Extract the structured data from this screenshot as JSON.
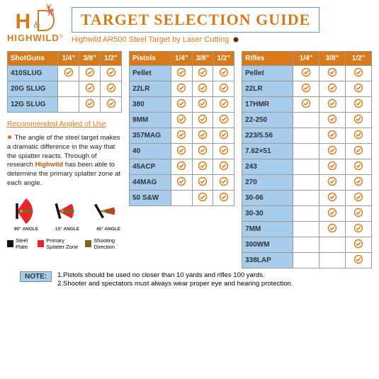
{
  "brand": "HIGHWILD",
  "title": "TARGET SELECTION GUIDE",
  "subtitle": "Highwild AR500 Steel Target by Laser Cutting",
  "colors": {
    "accent": "#d87a1a",
    "header_cell": "#a8ccec",
    "border": "#6699cc",
    "splatter": "#e8252b",
    "plate": "#151515",
    "bullet": "#7a6a20"
  },
  "thickness_labels": [
    "1/4\"",
    "3/8\"",
    "1/2\""
  ],
  "shotguns": {
    "label": "ShotGuns",
    "rows": [
      {
        "name": "410SLUG",
        "v": [
          true,
          true,
          true
        ]
      },
      {
        "name": "20G SLUG",
        "v": [
          false,
          true,
          true
        ]
      },
      {
        "name": "12G SLUG",
        "v": [
          false,
          true,
          true
        ]
      }
    ]
  },
  "pistols": {
    "label": "Pistols",
    "rows": [
      {
        "name": "Pellet",
        "v": [
          true,
          true,
          true
        ]
      },
      {
        "name": "22LR",
        "v": [
          true,
          true,
          true
        ]
      },
      {
        "name": "380",
        "v": [
          true,
          true,
          true
        ]
      },
      {
        "name": "9MM",
        "v": [
          true,
          true,
          true
        ]
      },
      {
        "name": "357MAG",
        "v": [
          true,
          true,
          true
        ]
      },
      {
        "name": "40",
        "v": [
          true,
          true,
          true
        ]
      },
      {
        "name": "45ACP",
        "v": [
          true,
          true,
          true
        ]
      },
      {
        "name": "44MAG",
        "v": [
          true,
          true,
          true
        ]
      },
      {
        "name": "50 S&W",
        "v": [
          false,
          true,
          true
        ]
      }
    ]
  },
  "rifles": {
    "label": "Rifles",
    "rows": [
      {
        "name": "Pellet",
        "v": [
          true,
          true,
          true
        ]
      },
      {
        "name": "22LR",
        "v": [
          true,
          true,
          true
        ]
      },
      {
        "name": "17HMR",
        "v": [
          true,
          true,
          true
        ]
      },
      {
        "name": "22-250",
        "v": [
          false,
          true,
          true
        ]
      },
      {
        "name": "223/5.56",
        "v": [
          false,
          true,
          true
        ]
      },
      {
        "name": "7.62×51",
        "v": [
          false,
          true,
          true
        ]
      },
      {
        "name": "243",
        "v": [
          false,
          true,
          true
        ]
      },
      {
        "name": "270",
        "v": [
          false,
          true,
          true
        ]
      },
      {
        "name": "30-06",
        "v": [
          false,
          true,
          true
        ]
      },
      {
        "name": "30-30",
        "v": [
          false,
          true,
          true
        ]
      },
      {
        "name": "7MM",
        "v": [
          false,
          true,
          true
        ]
      },
      {
        "name": "300WM",
        "v": [
          false,
          false,
          true
        ]
      },
      {
        "name": "338LAP",
        "v": [
          false,
          false,
          true
        ]
      }
    ]
  },
  "recommend": {
    "title": "Recommended Angled of Use",
    "text_pre": "The angle of the steel target makes a dramatic difference in the way that the splatter reacts. Through of research ",
    "brand": "Highwild",
    "text_post": " has been able to determine the primary splatter zone at each angle."
  },
  "angles": [
    {
      "label": "90° ANGLE",
      "plate_rot": 90,
      "cone_half": 55
    },
    {
      "label": "15° ANGLE",
      "plate_rot": 75,
      "cone_half": 28
    },
    {
      "label": "45° ANGLE",
      "plate_rot": 60,
      "cone_half": 14
    }
  ],
  "legend": {
    "plate": "Steel Plate",
    "splatter": "Primary Splatter Zone",
    "direction": "Shooting Direction"
  },
  "note": {
    "label": "NOTE:",
    "line1": "1.Pistols should be used no closer than 10 yards and rifles 100 yards.",
    "line2": "2.Shooter and spectators must always wear proper eye and hearing protection."
  }
}
